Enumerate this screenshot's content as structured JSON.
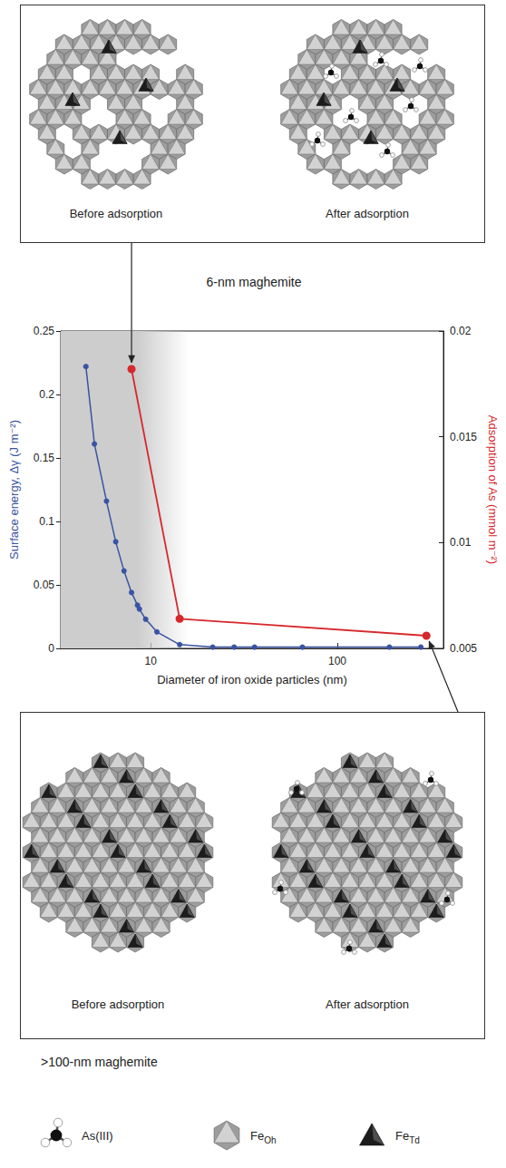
{
  "panels": [
    {
      "captions": [
        "Before adsorption",
        "After adsorption"
      ],
      "label": "6-nm maghemite"
    },
    {
      "captions": [
        "Before adsorption",
        "After adsorption"
      ],
      "label": ">100-nm maghemite"
    }
  ],
  "chart_data": {
    "type": "line",
    "x_label": "Diameter of iron oxide particles (nm)",
    "y_label": "Surface energy, Δγ (J m⁻²)",
    "y2_label": "Adsorption of As (mmol m⁻²)",
    "log": "x",
    "grid": false,
    "xlim": [
      3.3,
      370
    ],
    "xticks": [
      10,
      100
    ],
    "ylim": [
      0,
      0.25
    ],
    "yticks": [
      0,
      0.05,
      0.1,
      0.15,
      0.2,
      0.25
    ],
    "y2lim": [
      0.005,
      0.02
    ],
    "y2ticks": [
      0.005,
      0.01,
      0.015,
      0.02
    ],
    "shaded_range": [
      3.3,
      16
    ],
    "series": [
      {
        "color": "#3953a4",
        "marker": "circle",
        "x": [
          4.5,
          5.0,
          5.8,
          6.5,
          7.2,
          7.9,
          8.5,
          8.7,
          9.4,
          10.8,
          14.3,
          21.5,
          28,
          36,
          65,
          190,
          280
        ],
        "values": [
          0.222,
          0.161,
          0.116,
          0.084,
          0.061,
          0.044,
          0.034,
          0.031,
          0.023,
          0.013,
          0.003,
          0.001,
          0.001,
          0.001,
          0.001,
          0.001,
          0.001
        ]
      },
      {
        "color": "#d6282c",
        "marker": "circle",
        "axis": "y2",
        "x": [
          7.9,
          14.3,
          300
        ],
        "values": [
          0.0182,
          0.0064,
          0.0056
        ]
      }
    ]
  },
  "key": [
    {
      "text": "As(III)"
    },
    {
      "text": "Fe",
      "subscript": "Oh"
    },
    {
      "text": "Fe",
      "subscript": "Td"
    }
  ]
}
